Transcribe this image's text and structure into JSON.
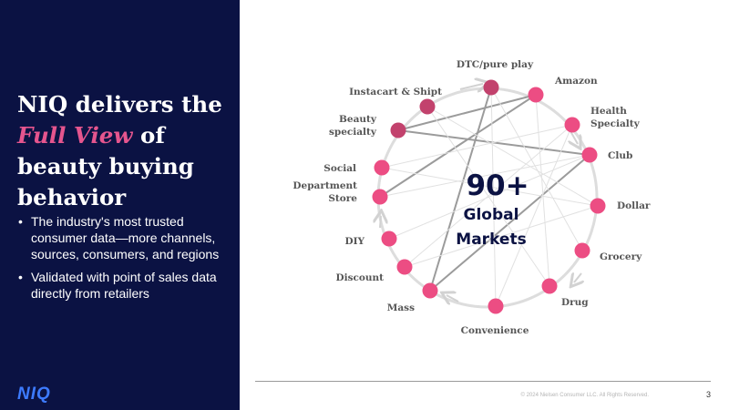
{
  "slide": {
    "headline": {
      "line1": "NIQ delivers the",
      "highlight": "Full View",
      "after_highlight": " of",
      "line3": "beauty buying",
      "line4": "behavior"
    },
    "bullets": [
      "The industry's most trusted consumer data—more channels, sources, consumers, and regions",
      "Validated with point of sales data directly from retailers"
    ],
    "logo_text": "NIQ",
    "copyright": "© 2024 Nielsen Consumer LLC. All Rights Reserved.",
    "page_number": "3",
    "colors": {
      "panel": "#0b1243",
      "accent_pink": "#e5558e",
      "node_pink": "#ec4d83",
      "node_dark": "#c2426d",
      "logo_blue": "#3d7bff"
    }
  },
  "diagram": {
    "center": {
      "big": "90+",
      "line1": "Global",
      "line2": "Markets"
    },
    "channels": [
      {
        "id": "dtc",
        "lines": [
          "DTC/pure play"
        ],
        "tone": "dark"
      },
      {
        "id": "amazon",
        "lines": [
          "Amazon"
        ],
        "tone": "pink"
      },
      {
        "id": "health",
        "lines": [
          "Health",
          "Specialty"
        ],
        "tone": "pink"
      },
      {
        "id": "club",
        "lines": [
          "Club"
        ],
        "tone": "pink"
      },
      {
        "id": "dollar",
        "lines": [
          "Dollar"
        ],
        "tone": "pink"
      },
      {
        "id": "grocery",
        "lines": [
          "Grocery"
        ],
        "tone": "pink"
      },
      {
        "id": "drug",
        "lines": [
          "Drug"
        ],
        "tone": "pink"
      },
      {
        "id": "convenience",
        "lines": [
          "Convenience"
        ],
        "tone": "pink"
      },
      {
        "id": "mass",
        "lines": [
          "Mass"
        ],
        "tone": "pink"
      },
      {
        "id": "discount",
        "lines": [
          "Discount"
        ],
        "tone": "pink"
      },
      {
        "id": "diy",
        "lines": [
          "DIY"
        ],
        "tone": "pink"
      },
      {
        "id": "department",
        "lines": [
          "Department",
          "Store"
        ],
        "tone": "pink"
      },
      {
        "id": "social",
        "lines": [
          "Social"
        ],
        "tone": "pink"
      },
      {
        "id": "beauty",
        "lines": [
          "Beauty",
          "specialty"
        ],
        "tone": "dark"
      },
      {
        "id": "instacart",
        "lines": [
          "Instacart & Shipt"
        ],
        "tone": "dark"
      }
    ]
  }
}
